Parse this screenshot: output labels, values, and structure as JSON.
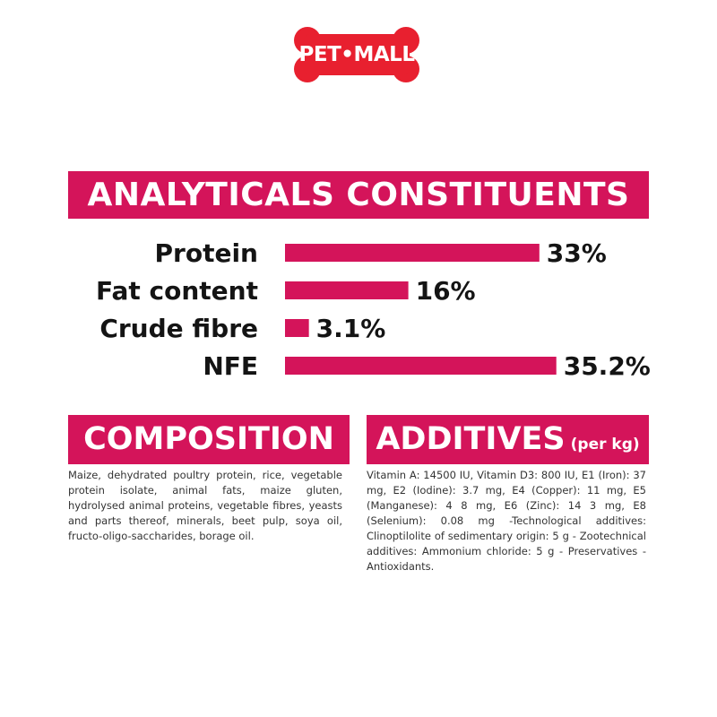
{
  "brand": {
    "logo_text": "PET•MALL",
    "accent_color": "#d4145a",
    "logo_color": "#e8202f"
  },
  "analytics": {
    "title": "ANALYTICALS CONSTITUENTS"
  },
  "chart_data": {
    "type": "bar",
    "orientation": "horizontal",
    "title": "ANALYTICALS CONSTITUENTS",
    "categories": [
      "Protein",
      "Fat content",
      "Crude fibre",
      "NFE"
    ],
    "values": [
      33,
      16,
      3.1,
      35.2
    ],
    "value_labels": [
      "33%",
      "16%",
      "3.1%",
      "35.2%"
    ],
    "unit": "%",
    "xlabel": "",
    "ylabel": "",
    "grid": false,
    "bar_color": "#d4145a"
  },
  "composition": {
    "title": "COMPOSITION",
    "text": "Maize, dehydrated poultry protein, rice, vegetable protein isolate, animal fats, maize gluten, hydrolysed animal proteins, vegetable fibres, yeasts and parts thereof, minerals, beet pulp, soya oil, fructo-oligo-saccharides, borage oil."
  },
  "additives": {
    "title": "ADDITIVES",
    "title_suffix": "(per kg)",
    "text": "Vitamin A: 14500 IU, Vitamin D3: 800 IU, E1 (Iron): 37 mg, E2 (Iodine): 3.7 mg, E4 (Copper): 11 mg, E5 (Manganese): 4 8 mg, E6 (Zinc): 14 3 mg, E8 (Selenium): 0.08 mg -Technological additives: Clinoptilolite of sedimentary origin: 5 g - Zootechnical additives: Ammonium chloride: 5 g - Preservatives - Antioxidants."
  }
}
